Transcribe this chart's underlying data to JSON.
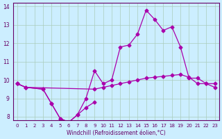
{
  "xlabel": "Windchill (Refroidissement éolien,°C)",
  "background_color": "#cceeff",
  "grid_color": "#aaddcc",
  "line_color": "#aa00aa",
  "x": [
    0,
    1,
    2,
    3,
    4,
    5,
    6,
    7,
    8,
    9,
    10,
    11,
    12,
    13,
    14,
    15,
    16,
    17,
    18,
    19,
    20,
    21,
    22,
    23
  ],
  "series1": [
    9.8,
    9.6,
    null,
    9.5,
    8.7,
    7.9,
    7.7,
    8.1,
    8.5,
    8.8,
    null,
    null,
    null,
    null,
    null,
    null,
    null,
    null,
    null,
    null,
    null,
    null,
    null,
    null
  ],
  "series2": [
    9.8,
    9.6,
    null,
    9.5,
    8.7,
    7.9,
    7.7,
    8.1,
    9.0,
    10.5,
    9.8,
    10.0,
    11.8,
    11.9,
    12.5,
    13.8,
    13.3,
    12.7,
    12.9,
    11.8,
    10.1,
    10.1,
    9.8,
    9.8
  ],
  "series3": [
    9.8,
    9.6,
    null,
    null,
    null,
    null,
    null,
    null,
    null,
    9.5,
    9.6,
    9.7,
    9.8,
    9.9,
    10.0,
    10.1,
    10.15,
    10.2,
    10.25,
    10.3,
    10.15,
    9.8,
    9.8,
    9.6
  ],
  "ylim": [
    8,
    14
  ],
  "xlim": [
    0,
    23
  ],
  "yticks": [
    8,
    9,
    10,
    11,
    12,
    13,
    14
  ],
  "xticks": [
    0,
    1,
    2,
    3,
    4,
    5,
    6,
    7,
    8,
    9,
    10,
    11,
    12,
    13,
    14,
    15,
    16,
    17,
    18,
    19,
    20,
    21,
    22,
    23
  ]
}
